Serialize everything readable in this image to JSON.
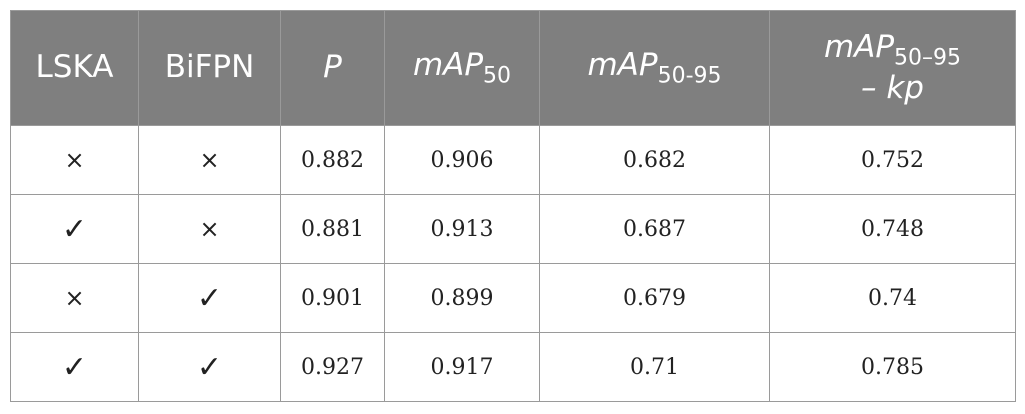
{
  "table": {
    "headers": {
      "lska": "LSKA",
      "bifpn": "BiFPN",
      "p": "P",
      "map50_main": "mAP",
      "map50_sub": "50",
      "map5095_main": "mAP",
      "map5095_sub": "50-95",
      "map5095kp_main": "mAP",
      "map5095kp_sub": "50–95",
      "map5095kp_line2": "– kp"
    },
    "rows": [
      {
        "lska": "×",
        "bifpn": "×",
        "p": "0.882",
        "map50": "0.906",
        "map5095": "0.682",
        "map5095kp": "0.752"
      },
      {
        "lska": "✓",
        "bifpn": "×",
        "p": "0.881",
        "map50": "0.913",
        "map5095": "0.687",
        "map5095kp": "0.748"
      },
      {
        "lska": "×",
        "bifpn": "✓",
        "p": "0.901",
        "map50": "0.899",
        "map5095": "0.679",
        "map5095kp": "0.74"
      },
      {
        "lska": "✓",
        "bifpn": "✓",
        "p": "0.927",
        "map50": "0.917",
        "map5095": "0.71",
        "map5095kp": "0.785"
      }
    ],
    "colors": {
      "header_bg": "#7f7f7f",
      "header_text": "#ffffff",
      "border": "#9a9a9a",
      "body_text": "#222222"
    }
  }
}
